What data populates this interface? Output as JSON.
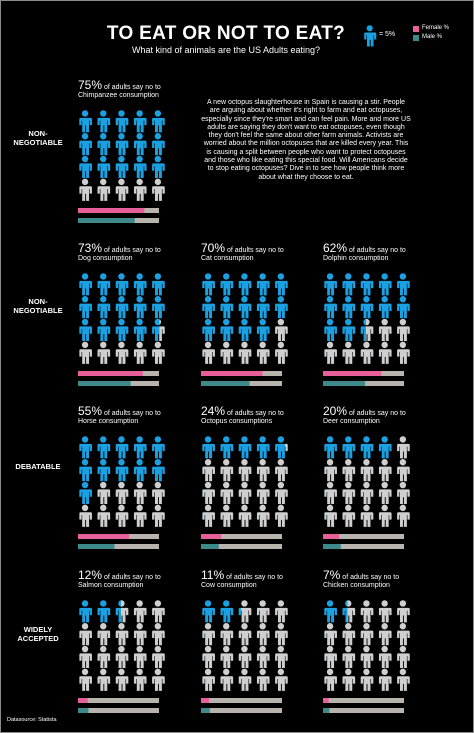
{
  "header": {
    "title": "TO EAT OR NOT TO EAT?",
    "subtitle": "What kind of animals are the US Adults eating?",
    "unit": {
      "value": 5,
      "label": "= 5%"
    },
    "legend": [
      {
        "name": "Female %",
        "color": "#e8609a"
      },
      {
        "name": "Male %",
        "color": "#3e8a8a"
      }
    ],
    "icon_color": "#1ba1e2",
    "rest_color": "#cfcfcf",
    "track_color": "#b9b3ad"
  },
  "intro": "A new octopus slaughterhouse in Spain is causing a stir. People are arguing about whether it's right to farm and eat octopuses, especially since they're smart and can feel pain. More and more US adults are saying they don't want to eat octopuses, even though they don't feel the same about other farm animals. Activists are worried about the million octopuses that are killed every year. This is causing a split between people who want to protect octopuses and those who like eating this special food. Will Americans decide to stop eating octopuses? Dive in to see how people think more about what they choose to eat.",
  "sections": [
    {
      "label": "NON-NEGOTIABLE",
      "panels": [
        {
          "pct": {
            "value": 75,
            "label": "75%"
          },
          "caption": "of adults say no to",
          "subject": "Chimpanzee consumption",
          "female": 82,
          "male": 70,
          "xlim": [
            0,
            100
          ]
        }
      ]
    },
    {
      "label": "NON-NEGOTIABLE",
      "panels": [
        {
          "pct": {
            "value": 73,
            "label": "73%"
          },
          "caption": "of adults say no to",
          "subject": "Dog consumption",
          "female": 80,
          "male": 65,
          "xlim": [
            0,
            100
          ]
        },
        {
          "pct": {
            "value": 70,
            "label": "70%"
          },
          "caption": "of adults say no to",
          "subject": "Cat consumption",
          "female": 76,
          "male": 60,
          "xlim": [
            0,
            100
          ]
        },
        {
          "pct": {
            "value": 62,
            "label": "62%"
          },
          "caption": "of adults say no to",
          "subject": "Dolphin consumption",
          "female": 72,
          "male": 52,
          "xlim": [
            0,
            100
          ]
        }
      ]
    },
    {
      "label": "DEBATABLE",
      "panels": [
        {
          "pct": {
            "value": 55,
            "label": "55%"
          },
          "caption": "of adults say no to",
          "subject": "Horse consumption",
          "female": 63,
          "male": 45,
          "xlim": [
            0,
            100
          ]
        },
        {
          "pct": {
            "value": 24,
            "label": "24%"
          },
          "caption": "of adults say no to",
          "subject": "Octopus consumptions",
          "female": 25,
          "male": 22,
          "xlim": [
            0,
            100
          ]
        },
        {
          "pct": {
            "value": 20,
            "label": "20%"
          },
          "caption": "of adults say no to",
          "subject": "Deer consumption",
          "female": 20,
          "male": 22,
          "xlim": [
            0,
            100
          ]
        }
      ]
    },
    {
      "label": "WIDELY ACCEPTED",
      "panels": [
        {
          "pct": {
            "value": 12,
            "label": "12%"
          },
          "caption": "of adults say no to",
          "subject": "Salmon consumption",
          "female": 12,
          "male": 13,
          "xlim": [
            0,
            100
          ]
        },
        {
          "pct": {
            "value": 11,
            "label": "11%"
          },
          "caption": "of adults say no to",
          "subject": "Cow consumption",
          "female": 10,
          "male": 11,
          "xlim": [
            0,
            100
          ]
        },
        {
          "pct": {
            "value": 7,
            "label": "7%"
          },
          "caption": "of adults say no to",
          "subject": "Chicken consumption",
          "female": 7,
          "male": 8,
          "xlim": [
            0,
            100
          ]
        }
      ]
    }
  ],
  "footer": "Datasource: Statista"
}
